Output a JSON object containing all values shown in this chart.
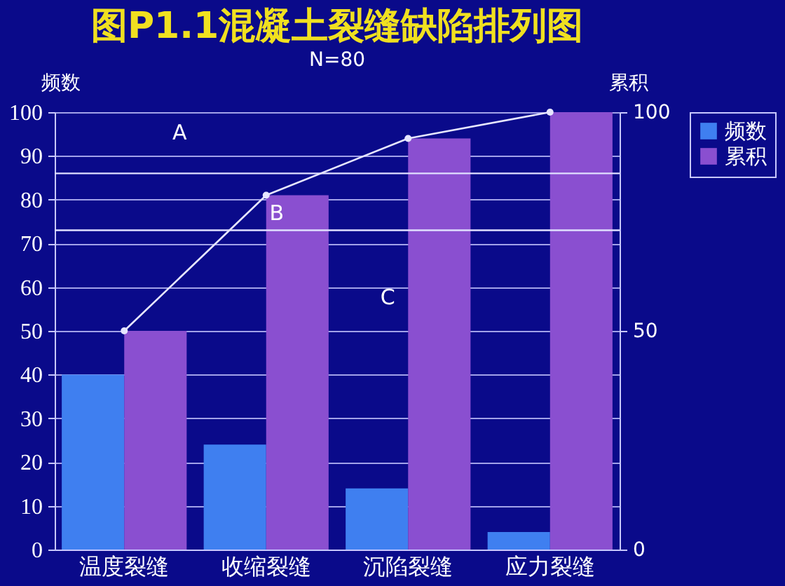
{
  "chart_data": {
    "type": "bar",
    "title": "图P1.1混凝土裂缝缺陷排列图",
    "subtitle": "N=80",
    "ylabel": "频数",
    "y2label": "累积",
    "categories": [
      "温度裂缝",
      "收缩裂缝",
      "沉陷裂缝",
      "应力裂缝"
    ],
    "series": [
      {
        "name": "频数",
        "color": "#3f7ff0",
        "values": [
          40,
          24,
          14,
          4
        ]
      },
      {
        "name": "累积",
        "color": "#8a4fd0",
        "values": [
          50,
          81,
          94,
          100
        ]
      },
      {
        "type": "line",
        "axis": "y2",
        "color": "#e6e6ff",
        "values": [
          50,
          81,
          94,
          100
        ]
      }
    ],
    "ylim": [
      0,
      100
    ],
    "yticks": [
      0,
      10,
      20,
      30,
      40,
      50,
      60,
      70,
      80,
      90,
      100
    ],
    "y2lim": [
      0,
      100
    ],
    "y2ticks": [
      0,
      50,
      100
    ],
    "ref_lines": [
      {
        "axis": "y",
        "value": 86
      },
      {
        "axis": "y",
        "value": 73
      }
    ],
    "annotations": [
      "A",
      "B",
      "C"
    ],
    "grid": "y",
    "legend": "right",
    "marker": "circle"
  }
}
